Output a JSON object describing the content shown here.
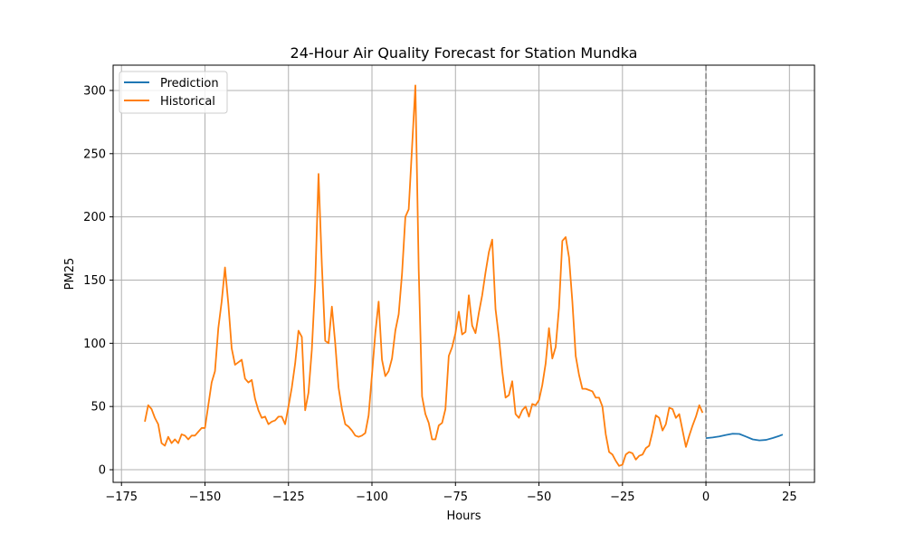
{
  "chart_data": {
    "type": "line",
    "title": "24-Hour Air Quality Forecast for Station Mundka",
    "xlabel": "Hours",
    "ylabel": "PM25",
    "xlim": [
      -177.5,
      32.5
    ],
    "ylim": [
      -10,
      320
    ],
    "xticks": [
      -175,
      -150,
      -125,
      -100,
      -75,
      -50,
      -25,
      0,
      25
    ],
    "yticks": [
      0,
      50,
      100,
      150,
      200,
      250,
      300
    ],
    "grid": true,
    "legend_position": "top-left",
    "vline": {
      "x": 0,
      "style": "dashed",
      "color": "#808080"
    },
    "series": [
      {
        "name": "Prediction",
        "color": "#1f77b4",
        "x": [
          0,
          2,
          4,
          6,
          8,
          10,
          12,
          14,
          16,
          18,
          20,
          22,
          23
        ],
        "y": [
          25,
          25.5,
          26.3,
          27.5,
          28.5,
          28.3,
          26.2,
          24,
          23.2,
          23.6,
          25.1,
          26.8,
          27.8
        ]
      },
      {
        "name": "Historical",
        "color": "#ff7f0e",
        "x": [
          -168,
          -167,
          -166,
          -165,
          -164,
          -163,
          -162,
          -161,
          -160,
          -159,
          -158,
          -157,
          -156,
          -155,
          -154,
          -153,
          -152,
          -151,
          -150,
          -149,
          -148,
          -147,
          -146,
          -145,
          -144,
          -143,
          -142,
          -141,
          -140,
          -139,
          -138,
          -137,
          -136,
          -135,
          -134,
          -133,
          -132,
          -131,
          -130,
          -129,
          -128,
          -127,
          -126,
          -125,
          -124,
          -123,
          -122,
          -121,
          -120,
          -119,
          -118,
          -117,
          -116,
          -115,
          -114,
          -113,
          -112,
          -111,
          -110,
          -109,
          -108,
          -107,
          -106,
          -105,
          -104,
          -103,
          -102,
          -101,
          -100,
          -99,
          -98,
          -97,
          -96,
          -95,
          -94,
          -93,
          -92,
          -91,
          -90,
          -89,
          -88,
          -87,
          -86,
          -85,
          -84,
          -83,
          -82,
          -81,
          -80,
          -79,
          -78,
          -77,
          -76,
          -75,
          -74,
          -73,
          -72,
          -71,
          -70,
          -69,
          -68,
          -67,
          -66,
          -65,
          -64,
          -63,
          -62,
          -61,
          -60,
          -59,
          -58,
          -57,
          -56,
          -55,
          -54,
          -53,
          -52,
          -51,
          -50,
          -49,
          -48,
          -47,
          -46,
          -45,
          -44,
          -43,
          -42,
          -41,
          -40,
          -39,
          -38,
          -37,
          -36,
          -35,
          -34,
          -33,
          -32,
          -31,
          -30,
          -29,
          -28,
          -27,
          -26,
          -25,
          -24,
          -23,
          -22,
          -21,
          -20,
          -19,
          -18,
          -17,
          -16,
          -15,
          -14,
          -13,
          -12,
          -11,
          -10,
          -9,
          -8,
          -7,
          -6,
          -5,
          -4,
          -3,
          -2,
          -1
        ],
        "y": [
          38,
          51,
          48,
          41,
          36,
          21,
          19,
          26,
          21,
          24,
          21,
          28,
          27,
          24,
          27,
          27,
          30,
          33,
          33,
          51,
          69,
          78,
          112,
          133,
          160,
          131,
          96,
          83,
          85,
          87,
          72,
          69,
          71,
          56,
          47,
          41,
          42,
          36,
          38,
          39,
          42,
          42,
          36,
          50,
          65,
          84,
          110,
          105,
          47,
          61,
          95,
          148,
          234,
          162,
          102,
          100,
          129,
          100,
          65,
          48,
          36,
          34,
          31,
          27,
          26,
          27,
          29,
          43,
          75,
          108,
          133,
          87,
          74,
          78,
          88,
          110,
          123,
          155,
          200,
          206,
          255,
          304,
          158,
          58,
          44,
          37,
          24,
          24,
          35,
          37,
          48,
          90,
          97,
          108,
          125,
          107,
          109,
          138,
          114,
          108,
          124,
          138,
          156,
          172,
          182,
          127,
          105,
          78,
          57,
          59,
          70,
          44,
          41,
          47,
          50,
          42,
          52,
          51,
          55,
          67,
          84,
          112,
          88,
          97,
          128,
          181,
          184,
          168,
          133,
          90,
          75,
          64,
          64,
          63,
          62,
          57,
          57,
          50,
          28,
          14,
          12,
          7,
          3,
          4,
          12,
          14,
          13,
          8,
          11,
          12,
          17,
          19,
          30,
          43,
          41,
          31,
          36,
          49,
          48,
          41,
          44,
          31,
          18,
          27,
          35,
          42,
          51,
          45
        ]
      }
    ]
  }
}
